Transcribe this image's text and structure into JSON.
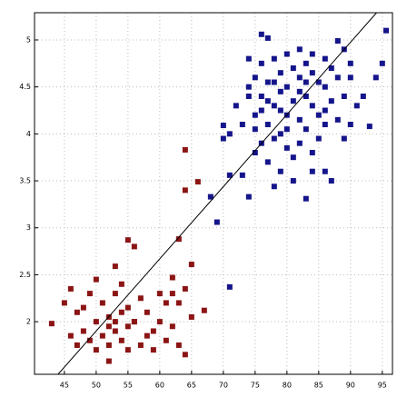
{
  "chart_data": {
    "type": "scatter",
    "xlim": [
      40.3,
      96.6
    ],
    "ylim": [
      1.44,
      5.29
    ],
    "xticks": [
      45,
      50,
      55,
      60,
      65,
      70,
      75,
      80,
      85,
      90,
      95
    ],
    "yticks": [
      2,
      2.5,
      3,
      3.5,
      4,
      4.5,
      5
    ],
    "grid": true,
    "series": [
      {
        "color": "#8b1414",
        "x": [
          43,
          45,
          46,
          46,
          47,
          47,
          48,
          48,
          49,
          49,
          50,
          50,
          50,
          51,
          51,
          52,
          52,
          52,
          53,
          53,
          53,
          54,
          54,
          54,
          55,
          55,
          55,
          56,
          56,
          57,
          57,
          58,
          58,
          59,
          59,
          60,
          60,
          61,
          61,
          62,
          62,
          63,
          63,
          64,
          64,
          65,
          66,
          67,
          64,
          63,
          55,
          56,
          65,
          53,
          62,
          52,
          64
        ],
        "values": [
          1.98,
          2.2,
          1.85,
          2.35,
          1.75,
          2.1,
          1.9,
          2.15,
          1.8,
          2.3,
          2.0,
          1.7,
          2.45,
          1.85,
          2.2,
          2.05,
          1.58,
          1.75,
          2.59,
          1.9,
          2.3,
          1.8,
          2.1,
          2.4,
          1.95,
          2.87,
          1.7,
          2.8,
          2.0,
          1.75,
          2.25,
          1.85,
          2.1,
          1.9,
          1.7,
          2.3,
          2.0,
          1.8,
          2.2,
          2.47,
          1.95,
          1.75,
          2.88,
          1.65,
          2.35,
          2.61,
          3.49,
          2.12,
          3.83,
          2.2,
          2.15,
          2.0,
          2.05,
          2.0,
          2.3,
          1.95,
          3.4
        ]
      },
      {
        "color": "#14148b",
        "x": [
          68,
          69,
          70,
          70,
          71,
          71,
          71,
          72,
          73,
          73,
          74,
          74,
          74,
          75,
          75,
          75,
          76,
          76,
          76,
          76,
          77,
          77,
          77,
          77,
          78,
          78,
          78,
          78,
          79,
          79,
          79,
          79,
          80,
          80,
          80,
          80,
          81,
          81,
          81,
          81,
          82,
          82,
          82,
          82,
          83,
          83,
          83,
          83,
          84,
          84,
          84,
          84,
          85,
          85,
          85,
          86,
          86,
          86,
          86,
          87,
          87,
          87,
          88,
          88,
          88,
          89,
          89,
          89,
          90,
          90,
          90,
          91,
          92,
          93,
          94,
          95.6,
          95,
          74,
          76,
          78,
          80,
          82,
          84,
          86,
          79,
          77,
          75,
          83
        ],
        "values": [
          3.33,
          3.06,
          4.09,
          3.95,
          2.37,
          3.56,
          4.0,
          4.3,
          3.56,
          4.1,
          3.33,
          4.5,
          4.8,
          3.8,
          4.6,
          4.2,
          5.06,
          4.75,
          4.4,
          3.9,
          5.02,
          4.55,
          4.1,
          3.7,
          3.44,
          4.8,
          4.3,
          3.95,
          4.65,
          4.45,
          4.0,
          3.6,
          4.85,
          4.5,
          4.2,
          3.85,
          4.7,
          4.35,
          3.75,
          3.5,
          4.9,
          4.6,
          4.15,
          3.9,
          3.31,
          4.75,
          4.4,
          4.05,
          4.65,
          4.3,
          3.8,
          3.6,
          4.55,
          4.2,
          3.95,
          4.8,
          4.5,
          4.1,
          3.6,
          3.5,
          4.7,
          4.35,
          4.99,
          4.6,
          4.15,
          4.9,
          4.4,
          3.95,
          4.75,
          4.6,
          4.1,
          4.3,
          4.4,
          4.08,
          4.6,
          5.1,
          4.75,
          4.4,
          4.25,
          4.55,
          4.05,
          4.45,
          4.85,
          4.25,
          4.25,
          4.35,
          4.05,
          4.55
        ]
      }
    ],
    "fit_line": {
      "color": "#000000",
      "x": [
        44,
        94.1
      ],
      "values": [
        1.44,
        5.29
      ]
    }
  }
}
